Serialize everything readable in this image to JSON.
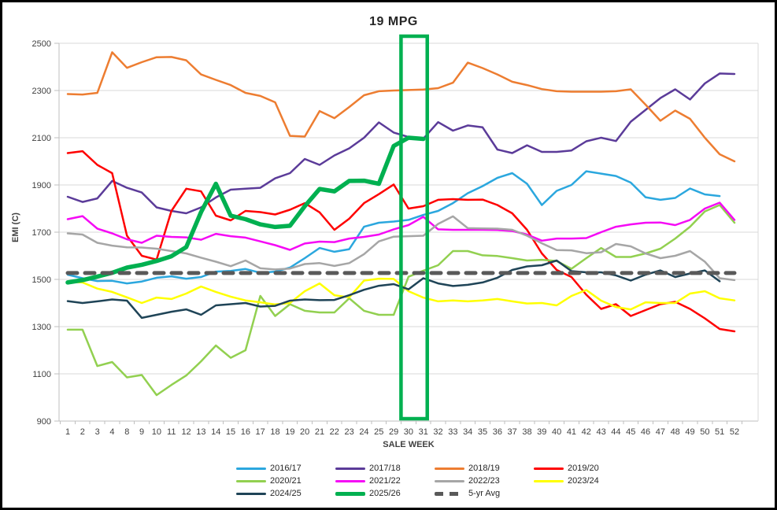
{
  "title": "19 MPG",
  "axes": {
    "x_title": "SALE WEEK",
    "y_title": "EMI (C)"
  },
  "chart_data": {
    "type": "line",
    "title": "19 MPG",
    "xlabel": "SALE WEEK",
    "ylabel": "EMI (C)",
    "ylim": [
      900,
      2500
    ],
    "y_step": 200,
    "grid": "horizontal",
    "legend_position": "bottom",
    "categories": [
      "1",
      "2",
      "3",
      "4",
      "8",
      "9",
      "10",
      "11",
      "12",
      "13",
      "14",
      "15",
      "16",
      "17",
      "18",
      "19",
      "20",
      "21",
      "22",
      "23",
      "24",
      "25",
      "29",
      "30",
      "31",
      "32",
      "33",
      "34",
      "35",
      "36",
      "37",
      "38",
      "39",
      "40",
      "41",
      "42",
      "43",
      "44",
      "45",
      "46",
      "47",
      "48",
      "49",
      "50",
      "51",
      "52"
    ],
    "annotations": {
      "highlight_box": {
        "from_week": "30",
        "to_week": "31",
        "color": "#00B050"
      }
    },
    "series": [
      {
        "name": "2016/17",
        "color": "#2BA7DE",
        "width": 2.5,
        "values": [
          1520,
          1505,
          1493,
          1494,
          1483,
          1491,
          1507,
          1513,
          1503,
          1510,
          1533,
          1536,
          1544,
          1528,
          1533,
          1550,
          1590,
          1633,
          1617,
          1628,
          1723,
          1740,
          1745,
          1752,
          1773,
          1790,
          1823,
          1865,
          1895,
          1930,
          1950,
          1905,
          1815,
          1875,
          1900,
          1958,
          1948,
          1938,
          1910,
          1848,
          1837,
          1845,
          1885,
          1860,
          1853,
          null
        ]
      },
      {
        "name": "2017/18",
        "color": "#5B3B99",
        "width": 2.5,
        "values": [
          1850,
          1828,
          1843,
          1917,
          1888,
          1868,
          1805,
          1790,
          1780,
          1805,
          1847,
          1880,
          1884,
          1888,
          1928,
          1950,
          2010,
          1985,
          2025,
          2055,
          2100,
          2165,
          2122,
          2103,
          2096,
          2166,
          2130,
          2152,
          2144,
          2050,
          2035,
          2068,
          2040,
          2040,
          2046,
          2085,
          2100,
          2086,
          2168,
          2218,
          2268,
          2305,
          2262,
          2330,
          2372,
          2370
        ]
      },
      {
        "name": "2018/19",
        "color": "#ED7D31",
        "width": 2.5,
        "values": [
          2285,
          2283,
          2290,
          2462,
          2396,
          2420,
          2441,
          2442,
          2428,
          2368,
          2345,
          2323,
          2290,
          2277,
          2250,
          2108,
          2105,
          2213,
          2183,
          2230,
          2280,
          2297,
          2300,
          2302,
          2304,
          2310,
          2333,
          2418,
          2395,
          2368,
          2337,
          2323,
          2306,
          2297,
          2295,
          2295,
          2295,
          2297,
          2305,
          2240,
          2172,
          2215,
          2180,
          2100,
          2030,
          2000
        ]
      },
      {
        "name": "2019/20",
        "color": "#FE0000",
        "width": 2.5,
        "values": [
          2035,
          2043,
          1985,
          1950,
          1685,
          1600,
          1584,
          1790,
          1884,
          1873,
          1770,
          1750,
          1790,
          1785,
          1775,
          1795,
          1823,
          1784,
          1710,
          1757,
          1823,
          1861,
          1902,
          1800,
          1810,
          1837,
          1840,
          1837,
          1838,
          1815,
          1780,
          1710,
          1610,
          1540,
          1510,
          1435,
          1375,
          1395,
          1345,
          1370,
          1395,
          1405,
          1375,
          1335,
          1290,
          1280
        ]
      },
      {
        "name": "2020/21",
        "color": "#92D050",
        "width": 2.5,
        "values": [
          1287,
          1287,
          1133,
          1150,
          1085,
          1095,
          1010,
          1053,
          1093,
          1153,
          1220,
          1168,
          1200,
          1430,
          1345,
          1395,
          1367,
          1360,
          1360,
          1420,
          1367,
          1350,
          1350,
          1511,
          1537,
          1560,
          1620,
          1620,
          1602,
          1599,
          1590,
          1580,
          1583,
          1578,
          1545,
          1590,
          1633,
          1595,
          1595,
          1610,
          1630,
          1673,
          1723,
          1788,
          1815,
          1740
        ]
      },
      {
        "name": "2021/22",
        "color": "#F50AF5",
        "width": 2.5,
        "values": [
          1755,
          1768,
          1715,
          1695,
          1670,
          1655,
          1685,
          1680,
          1678,
          1668,
          1693,
          1683,
          1677,
          1661,
          1645,
          1625,
          1652,
          1660,
          1658,
          1673,
          1680,
          1690,
          1712,
          1730,
          1765,
          1712,
          1710,
          1710,
          1710,
          1709,
          1705,
          1690,
          1664,
          1673,
          1673,
          1675,
          1700,
          1723,
          1733,
          1740,
          1741,
          1730,
          1752,
          1800,
          1825,
          1752
        ]
      },
      {
        "name": "2022/23",
        "color": "#A6A6A6",
        "width": 2.5,
        "values": [
          1695,
          1690,
          1655,
          1643,
          1636,
          1635,
          1630,
          1620,
          1610,
          1592,
          1575,
          1556,
          1580,
          1547,
          1542,
          1546,
          1565,
          1569,
          1557,
          1569,
          1607,
          1661,
          1681,
          1683,
          1685,
          1735,
          1767,
          1717,
          1716,
          1715,
          1710,
          1685,
          1653,
          1624,
          1623,
          1611,
          1615,
          1650,
          1640,
          1610,
          1590,
          1600,
          1620,
          1575,
          1505,
          1497
        ]
      },
      {
        "name": "2023/24",
        "color": "#FFFF00",
        "width": 2.5,
        "values": [
          1490,
          1487,
          1461,
          1447,
          1424,
          1400,
          1423,
          1417,
          1440,
          1470,
          1447,
          1427,
          1411,
          1403,
          1394,
          1400,
          1450,
          1483,
          1433,
          1424,
          1495,
          1503,
          1502,
          1450,
          1423,
          1407,
          1411,
          1407,
          1411,
          1417,
          1407,
          1398,
          1400,
          1390,
          1430,
          1455,
          1410,
          1383,
          1373,
          1403,
          1400,
          1400,
          1440,
          1450,
          1420,
          1411
        ]
      },
      {
        "name": "2024/25",
        "color": "#1F4457",
        "width": 2.5,
        "values": [
          1408,
          1400,
          1407,
          1415,
          1410,
          1337,
          1350,
          1363,
          1373,
          1350,
          1390,
          1395,
          1400,
          1385,
          1388,
          1410,
          1415,
          1412,
          1413,
          1433,
          1456,
          1473,
          1480,
          1458,
          1505,
          1483,
          1472,
          1477,
          1487,
          1507,
          1540,
          1555,
          1560,
          1580,
          1535,
          1530,
          1530,
          1517,
          1495,
          1520,
          1538,
          1510,
          1525,
          1538,
          1492,
          null
        ]
      },
      {
        "name": "2025/26",
        "color": "#00B050",
        "width": 5.5,
        "values": [
          1487,
          1497,
          1512,
          1528,
          1550,
          1562,
          1578,
          1598,
          1637,
          1785,
          1905,
          1770,
          1755,
          1733,
          1722,
          1727,
          1810,
          1883,
          1873,
          1917,
          1918,
          1905,
          2065,
          2100,
          2095,
          null,
          null,
          null,
          null,
          null,
          null,
          null,
          null,
          null,
          null,
          null,
          null,
          null,
          null,
          null,
          null,
          null,
          null,
          null,
          null,
          null
        ]
      },
      {
        "name": "5-yr Avg",
        "color": "#595959",
        "width": 5,
        "dash": "12 10",
        "constant": 1527
      }
    ]
  }
}
